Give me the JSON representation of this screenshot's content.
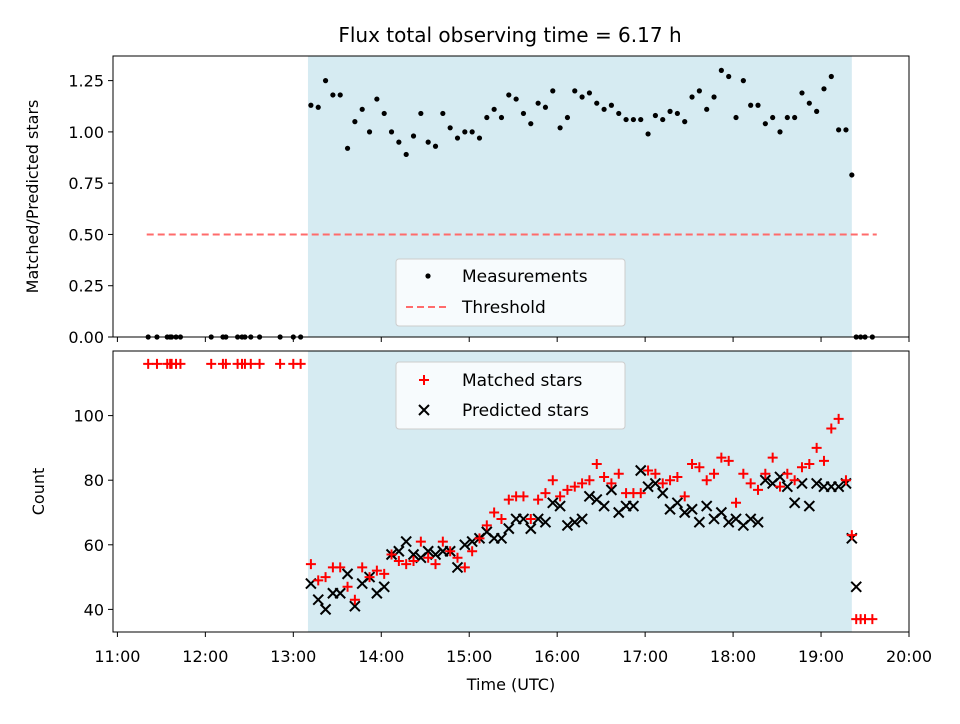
{
  "title": "Flux total observing time = 6.17 h",
  "colors": {
    "window_fill": "#add8e6",
    "measurement": "#000000",
    "threshold": "#ff6b6b",
    "matched": "#ff0000",
    "predicted": "#000000"
  },
  "chart_data": [
    {
      "type": "scatter",
      "panel": "top",
      "title": "Flux total observing time = 6.17 h",
      "xlabel": "",
      "ylabel": "Matched/Predicted stars",
      "xlim": [
        "10:57",
        "20:00"
      ],
      "ylim": [
        0,
        1.37
      ],
      "yticks": [
        0.0,
        0.25,
        0.5,
        0.75,
        1.0,
        1.25
      ],
      "ytick_labels": [
        "0.00",
        "0.25",
        "0.50",
        "0.75",
        "1.00",
        "1.25"
      ],
      "observing_window": [
        "13:10",
        "19:21"
      ],
      "threshold": {
        "value": 0.5,
        "x_range": [
          "11:20",
          "19:38"
        ],
        "style": "dashed"
      },
      "legend": {
        "placement": "lower-center",
        "entries": [
          "Measurements",
          "Threshold"
        ]
      },
      "series": [
        {
          "name": "Measurements",
          "marker": "dot",
          "x": [
            "11:21",
            "11:27",
            "11:34",
            "11:36",
            "11:37",
            "11:40",
            "11:43",
            "12:04",
            "12:12",
            "12:14",
            "12:22",
            "12:25",
            "12:27",
            "12:31",
            "12:37",
            "12:51",
            "13:00",
            "13:05",
            "13:12",
            "13:17",
            "13:22",
            "13:27",
            "13:32",
            "13:37",
            "13:42",
            "13:47",
            "13:52",
            "13:57",
            "14:02",
            "14:07",
            "14:12",
            "14:17",
            "14:22",
            "14:27",
            "14:32",
            "14:37",
            "14:42",
            "14:47",
            "14:52",
            "14:57",
            "15:02",
            "15:07",
            "15:12",
            "15:17",
            "15:22",
            "15:27",
            "15:32",
            "15:37",
            "15:42",
            "15:47",
            "15:52",
            "15:57",
            "16:02",
            "16:07",
            "16:12",
            "16:17",
            "16:22",
            "16:27",
            "16:32",
            "16:37",
            "16:42",
            "16:47",
            "16:52",
            "16:57",
            "17:02",
            "17:07",
            "17:12",
            "17:17",
            "17:22",
            "17:27",
            "17:32",
            "17:37",
            "17:42",
            "17:47",
            "17:52",
            "17:57",
            "18:02",
            "18:07",
            "18:12",
            "18:17",
            "18:22",
            "18:27",
            "18:32",
            "18:37",
            "18:42",
            "18:47",
            "18:52",
            "18:57",
            "19:02",
            "19:07",
            "19:12",
            "19:17",
            "19:21",
            "19:24",
            "19:27",
            "19:30",
            "19:35"
          ],
          "y": [
            0,
            0,
            0,
            0,
            0,
            0,
            0,
            0,
            0,
            0,
            0,
            0,
            0,
            0,
            0,
            0,
            0,
            0,
            1.13,
            1.12,
            1.25,
            1.18,
            1.18,
            0.92,
            1.05,
            1.11,
            1.0,
            1.16,
            1.09,
            1.0,
            0.95,
            0.89,
            0.98,
            1.09,
            0.95,
            0.93,
            1.09,
            1.02,
            0.97,
            1.0,
            1.0,
            0.97,
            1.07,
            1.11,
            1.07,
            1.18,
            1.16,
            1.09,
            1.04,
            1.14,
            1.12,
            1.2,
            1.02,
            1.07,
            1.2,
            1.17,
            1.19,
            1.14,
            1.11,
            1.13,
            1.09,
            1.06,
            1.06,
            1.06,
            0.99,
            1.08,
            1.06,
            1.1,
            1.09,
            1.05,
            1.17,
            1.2,
            1.11,
            1.17,
            1.3,
            1.27,
            1.07,
            1.25,
            1.13,
            1.13,
            1.04,
            1.07,
            1.0,
            1.07,
            1.07,
            1.19,
            1.14,
            1.1,
            1.21,
            1.27,
            1.01,
            1.01,
            0.79,
            0,
            0,
            0,
            0
          ]
        }
      ]
    },
    {
      "type": "scatter",
      "panel": "bottom",
      "title": "",
      "xlabel": "Time (UTC)",
      "ylabel": "Count",
      "xlim": [
        "10:57",
        "20:00"
      ],
      "ylim": [
        33,
        120
      ],
      "yticks": [
        40,
        60,
        80,
        100
      ],
      "ytick_labels": [
        "40",
        "60",
        "80",
        "100"
      ],
      "xticks": [
        "11:00",
        "12:00",
        "13:00",
        "14:00",
        "15:00",
        "16:00",
        "17:00",
        "18:00",
        "19:00",
        "20:00"
      ],
      "observing_window": [
        "13:10",
        "19:21"
      ],
      "legend": {
        "placement": "upper-center",
        "entries": [
          "Matched stars",
          "Predicted stars"
        ]
      },
      "series": [
        {
          "name": "Matched stars",
          "marker": "plus",
          "x": [
            "11:21",
            "11:27",
            "11:34",
            "11:36",
            "11:37",
            "11:40",
            "11:43",
            "12:04",
            "12:12",
            "12:14",
            "12:22",
            "12:25",
            "12:27",
            "12:31",
            "12:37",
            "12:51",
            "13:00",
            "13:05",
            "13:12",
            "13:17",
            "13:22",
            "13:27",
            "13:32",
            "13:37",
            "13:42",
            "13:47",
            "13:52",
            "13:57",
            "14:02",
            "14:07",
            "14:12",
            "14:17",
            "14:22",
            "14:27",
            "14:32",
            "14:37",
            "14:42",
            "14:47",
            "14:52",
            "14:57",
            "15:02",
            "15:07",
            "15:12",
            "15:17",
            "15:22",
            "15:27",
            "15:32",
            "15:37",
            "15:42",
            "15:47",
            "15:52",
            "15:57",
            "16:02",
            "16:07",
            "16:12",
            "16:17",
            "16:22",
            "16:27",
            "16:32",
            "16:37",
            "16:42",
            "16:47",
            "16:52",
            "16:57",
            "17:02",
            "17:07",
            "17:12",
            "17:17",
            "17:22",
            "17:27",
            "17:32",
            "17:37",
            "17:42",
            "17:47",
            "17:52",
            "17:57",
            "18:02",
            "18:07",
            "18:12",
            "18:17",
            "18:22",
            "18:27",
            "18:32",
            "18:37",
            "18:42",
            "18:47",
            "18:52",
            "18:57",
            "19:02",
            "19:07",
            "19:12",
            "19:17",
            "19:21",
            "19:24",
            "19:27",
            "19:30",
            "19:35"
          ],
          "y": [
            116,
            116,
            116,
            116,
            116,
            116,
            116,
            116,
            116,
            116,
            116,
            116,
            116,
            116,
            116,
            116,
            116,
            116,
            54,
            49,
            50,
            53,
            53,
            47,
            43,
            53,
            50,
            52,
            51,
            57,
            55,
            54,
            55,
            61,
            56,
            54,
            61,
            58,
            56,
            53,
            58,
            62,
            66,
            70,
            68,
            74,
            75,
            75,
            68,
            74,
            76,
            80,
            75,
            77,
            78,
            79,
            80,
            85,
            81,
            79,
            82,
            76,
            76,
            76,
            83,
            82,
            79,
            80,
            81,
            75,
            85,
            84,
            80,
            82,
            87,
            86,
            73,
            82,
            79,
            77,
            82,
            87,
            78,
            82,
            80,
            84,
            85,
            90,
            86,
            96,
            99,
            80,
            63,
            37,
            37,
            37,
            37
          ]
        },
        {
          "name": "Predicted stars",
          "marker": "x",
          "x": [
            "13:12",
            "13:17",
            "13:22",
            "13:27",
            "13:32",
            "13:37",
            "13:42",
            "13:47",
            "13:52",
            "13:57",
            "14:02",
            "14:07",
            "14:12",
            "14:17",
            "14:22",
            "14:27",
            "14:32",
            "14:37",
            "14:42",
            "14:47",
            "14:52",
            "14:57",
            "15:02",
            "15:07",
            "15:12",
            "15:17",
            "15:22",
            "15:27",
            "15:32",
            "15:37",
            "15:42",
            "15:47",
            "15:52",
            "15:57",
            "16:02",
            "16:07",
            "16:12",
            "16:17",
            "16:22",
            "16:27",
            "16:32",
            "16:37",
            "16:42",
            "16:47",
            "16:52",
            "16:57",
            "17:02",
            "17:07",
            "17:12",
            "17:17",
            "17:22",
            "17:27",
            "17:32",
            "17:37",
            "17:42",
            "17:47",
            "17:52",
            "17:57",
            "18:02",
            "18:07",
            "18:12",
            "18:17",
            "18:22",
            "18:27",
            "18:32",
            "18:37",
            "18:42",
            "18:47",
            "18:52",
            "18:57",
            "19:02",
            "19:07",
            "19:12",
            "19:17",
            "19:21",
            "19:24"
          ],
          "y": [
            48,
            43,
            40,
            45,
            45,
            51,
            41,
            48,
            50,
            45,
            47,
            57,
            58,
            61,
            57,
            56,
            58,
            57,
            58,
            58,
            53,
            60,
            61,
            62,
            64,
            62,
            62,
            65,
            68,
            68,
            65,
            68,
            67,
            73,
            72,
            66,
            67,
            68,
            75,
            74,
            72,
            77,
            70,
            72,
            72,
            83,
            78,
            79,
            76,
            71,
            73,
            70,
            71,
            67,
            72,
            68,
            70,
            67,
            68,
            66,
            68,
            67,
            80,
            79,
            81,
            78,
            73,
            79,
            72,
            79,
            78,
            78,
            78,
            79,
            62,
            47
          ]
        }
      ]
    }
  ]
}
